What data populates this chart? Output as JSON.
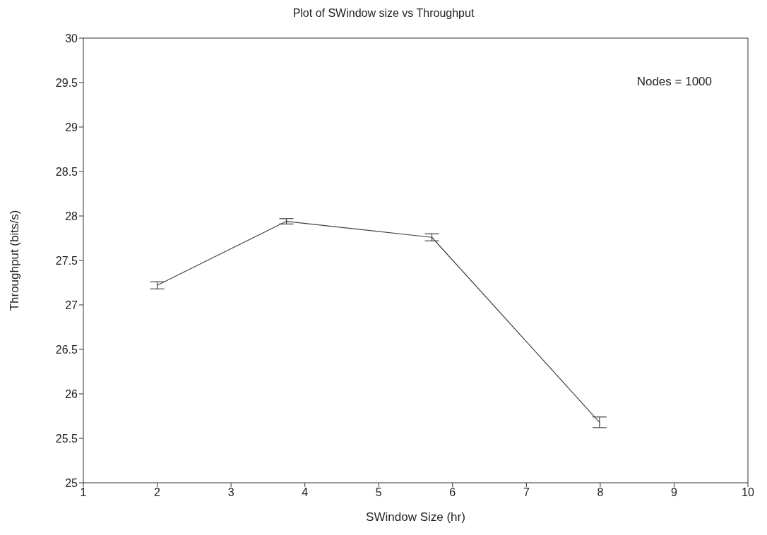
{
  "chart_data": {
    "type": "line",
    "title": "Plot of SWindow size vs Throughput",
    "xlabel": "SWindow Size (hr)",
    "ylabel": "Throughput (bits/s)",
    "annotations": [
      "Nodes = 1000"
    ],
    "x": [
      2,
      3.75,
      5.72,
      7.99
    ],
    "series": [
      {
        "color": "#404040",
        "values": [
          27.22,
          27.94,
          27.76,
          25.68
        ],
        "errors": [
          0.04,
          0.03,
          0.04,
          0.06
        ]
      }
    ],
    "xlim": [
      1,
      10
    ],
    "xticks": [
      1,
      2,
      3,
      4,
      5,
      6,
      7,
      8,
      9,
      10
    ],
    "ylim": [
      25,
      30
    ],
    "yticks": [
      25,
      25.5,
      26,
      26.5,
      27,
      27.5,
      28,
      28.5,
      29,
      29.5,
      30
    ],
    "grid": false,
    "marker": "none",
    "line_style": "solid"
  }
}
